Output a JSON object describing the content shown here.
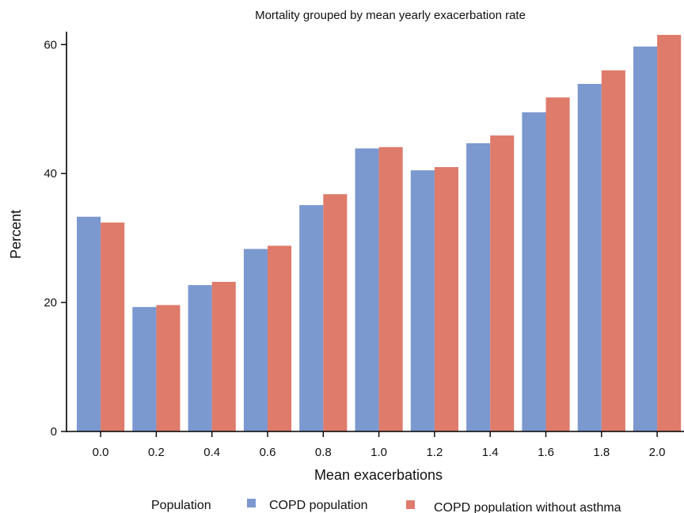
{
  "chart_data": {
    "type": "bar",
    "title": "Mortality grouped by mean yearly exacerbation rate",
    "xlabel": "Mean exacerbations",
    "ylabel": "Percent",
    "ylim": [
      0,
      62
    ],
    "yticks": [
      0,
      20,
      40,
      60
    ],
    "grid": false,
    "legend_position": "bottom",
    "legend_title": "Population",
    "categories": [
      "0.0",
      "0.2",
      "0.4",
      "0.6",
      "0.8",
      "1.0",
      "1.2",
      "1.4",
      "1.6",
      "1.8",
      "2.0"
    ],
    "series": [
      {
        "name": "COPD population",
        "color": "#7b98cf",
        "values": [
          33.3,
          19.3,
          22.7,
          28.3,
          35.1,
          43.9,
          40.5,
          44.7,
          49.5,
          53.9,
          59.7
        ]
      },
      {
        "name": "COPD population without asthma",
        "color": "#de7b6b",
        "values": [
          32.4,
          19.6,
          23.2,
          28.8,
          36.8,
          44.1,
          41.0,
          45.9,
          51.8,
          56.0,
          61.5
        ]
      }
    ]
  }
}
